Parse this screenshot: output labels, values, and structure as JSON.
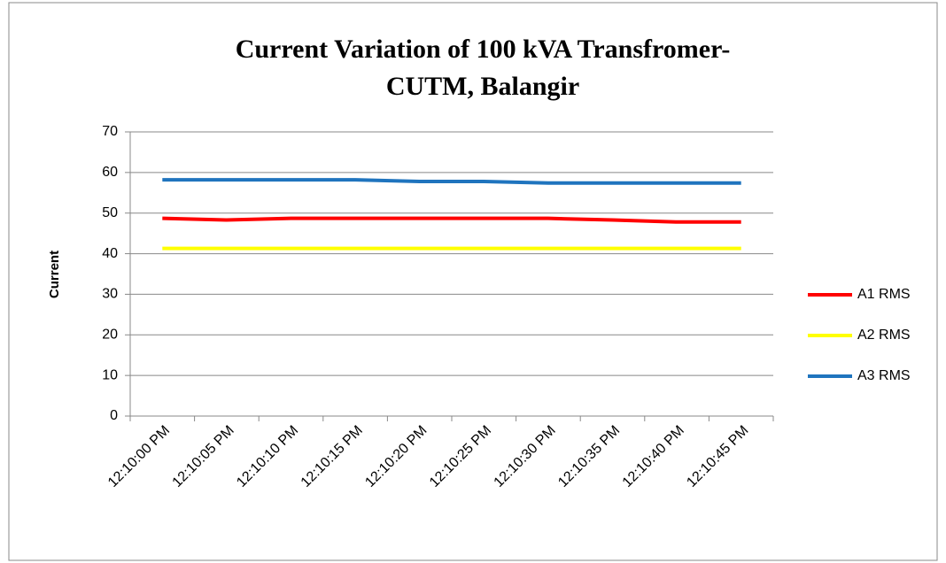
{
  "chart_data": {
    "type": "line",
    "title": [
      "Current Variation of 100 kVA Transfromer-",
      "CUTM, Balangir"
    ],
    "y_label": "Current",
    "categories": [
      "12:10:00 PM",
      "12:10:05 PM",
      "12:10:10 PM",
      "12:10:15 PM",
      "12:10:20 PM",
      "12:10:25 PM",
      "12:10:30 PM",
      "12:10:35 PM",
      "12:10:40 PM",
      "12:10:45 PM"
    ],
    "series": [
      {
        "name": "A1 RMS",
        "color": "#ff0000",
        "values": [
          48.7,
          48.3,
          48.7,
          48.7,
          48.7,
          48.7,
          48.7,
          48.3,
          47.8,
          47.8
        ]
      },
      {
        "name": "A2 RMS",
        "color": "#ffff00",
        "values": [
          41.3,
          41.3,
          41.3,
          41.3,
          41.3,
          41.3,
          41.3,
          41.3,
          41.3,
          41.3
        ]
      },
      {
        "name": "A3 RMS",
        "color": "#1f74be",
        "values": [
          58.2,
          58.2,
          58.2,
          58.2,
          57.8,
          57.8,
          57.4,
          57.4,
          57.4,
          57.4
        ]
      }
    ],
    "ylim": [
      0,
      70
    ],
    "yticks": [
      0,
      10,
      20,
      30,
      40,
      50,
      60,
      70
    ],
    "grid": true,
    "legend": "right"
  }
}
